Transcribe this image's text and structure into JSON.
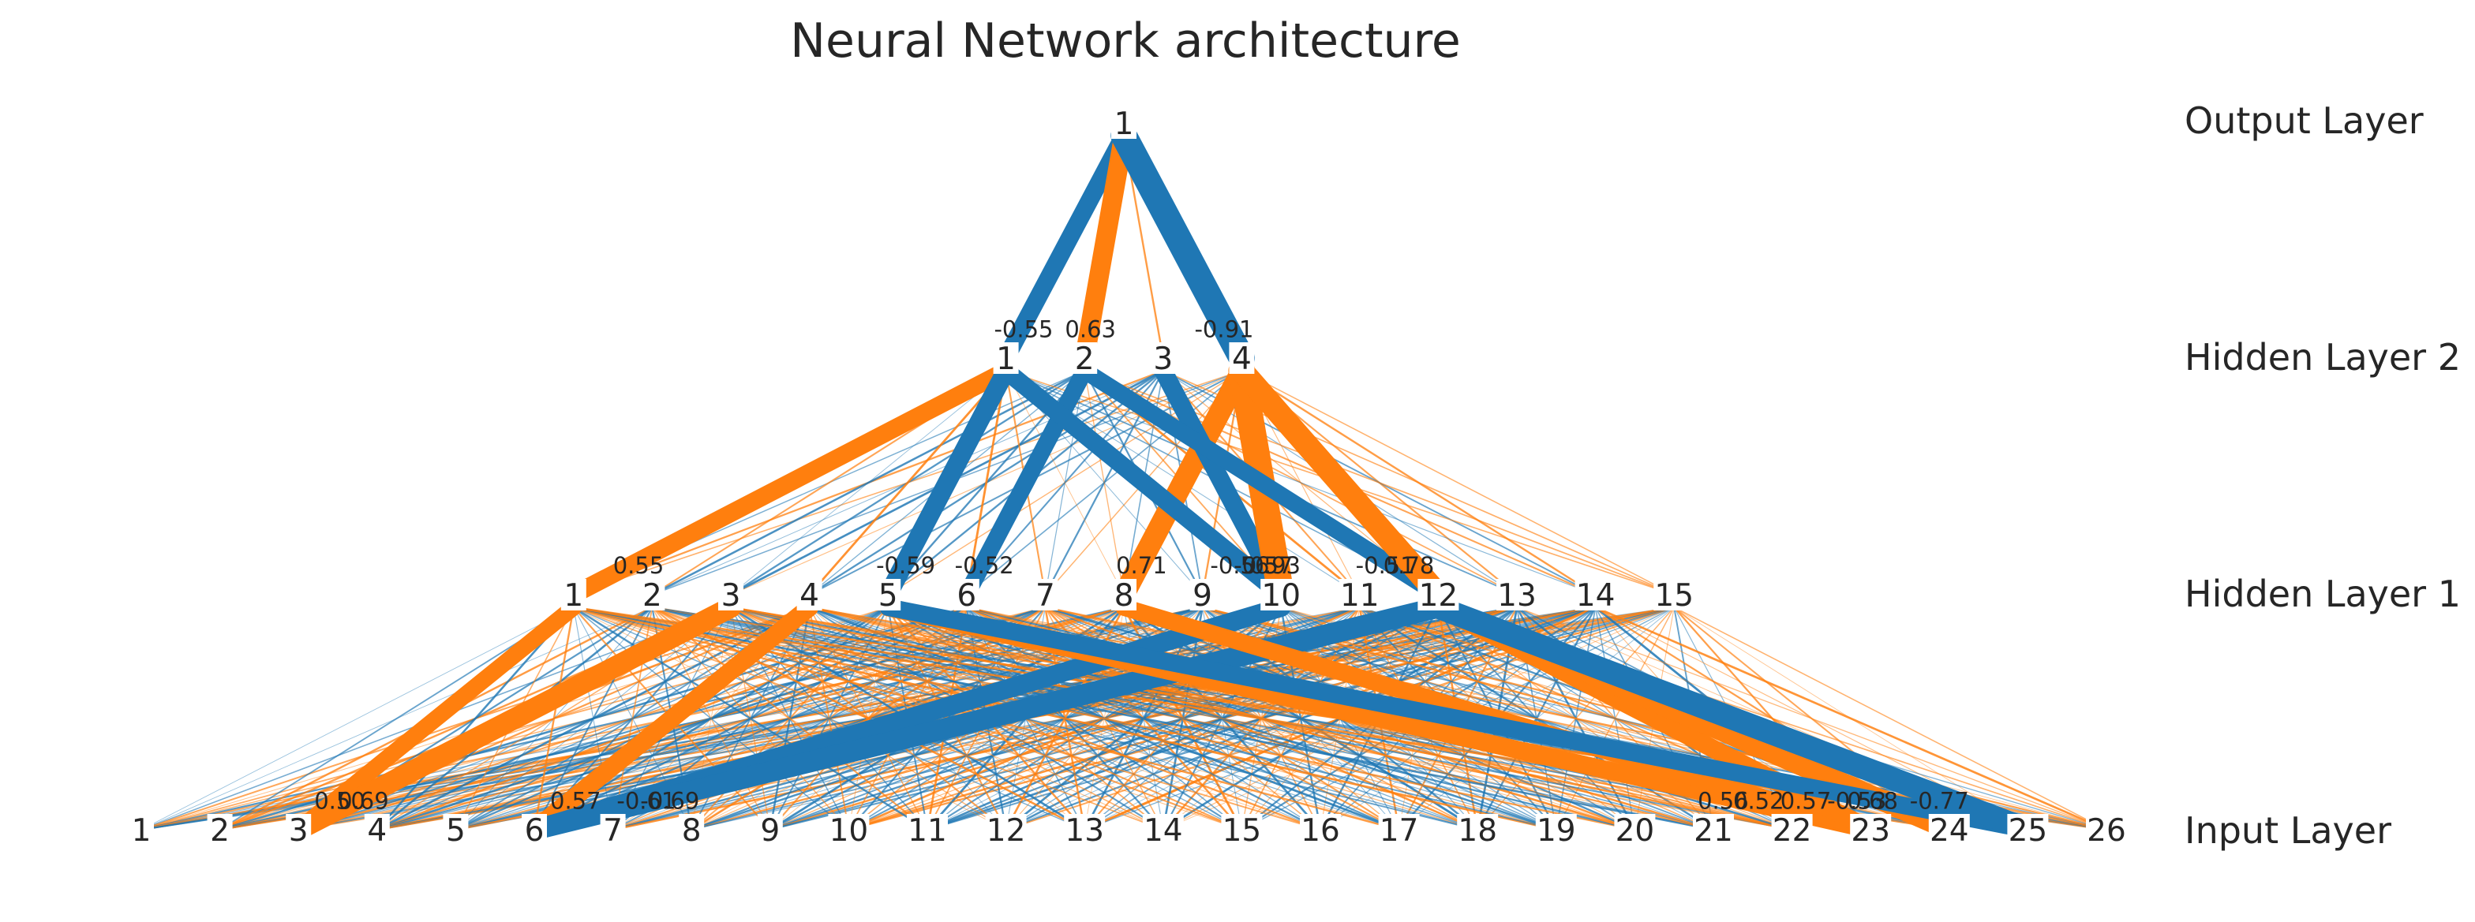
{
  "title": "Neural Network architecture",
  "colors": {
    "positive": "#ff7f0e",
    "negative": "#1f77b4",
    "node_label_bg": "#ffffff",
    "text": "#262626"
  },
  "layers": [
    {
      "name": "Input Layer",
      "size": 26
    },
    {
      "name": "Hidden Layer 1",
      "size": 15
    },
    {
      "name": "Hidden Layer 2",
      "size": 4
    },
    {
      "name": "Output Layer",
      "size": 1
    }
  ],
  "node_labels": {
    "input": [
      "1",
      "2",
      "3",
      "4",
      "5",
      "6",
      "7",
      "8",
      "9",
      "10",
      "11",
      "12",
      "13",
      "14",
      "15",
      "16",
      "17",
      "18",
      "19",
      "20",
      "21",
      "22",
      "23",
      "24",
      "25",
      "26"
    ],
    "hidden1": [
      "1",
      "2",
      "3",
      "4",
      "5",
      "6",
      "7",
      "8",
      "9",
      "10",
      "11",
      "12",
      "13",
      "14",
      "15"
    ],
    "hidden2": [
      "1",
      "2",
      "3",
      "4"
    ],
    "output": [
      "1"
    ]
  },
  "labeled_weights": [
    {
      "from_layer": 2,
      "from": 1,
      "to": 1,
      "weight": -0.55,
      "label": "-0.55"
    },
    {
      "from_layer": 2,
      "from": 2,
      "to": 1,
      "weight": 0.63,
      "label": "0.63"
    },
    {
      "from_layer": 2,
      "from": 4,
      "to": 1,
      "weight": -0.91,
      "label": "-0.91"
    },
    {
      "from_layer": 1,
      "from": 1,
      "to": 1,
      "weight": 0.55,
      "label": "0.55"
    },
    {
      "from_layer": 1,
      "from": 5,
      "to": 1,
      "weight": -0.59,
      "label": "-0.59"
    },
    {
      "from_layer": 1,
      "from": 6,
      "to": 2,
      "weight": -0.52,
      "label": "-0.52"
    },
    {
      "from_layer": 1,
      "from": 10,
      "to": 1,
      "weight": -0.56,
      "label": "-0.56"
    },
    {
      "from_layer": 1,
      "from": 12,
      "to": 2,
      "weight": -0.51,
      "label": "-0.51"
    },
    {
      "from_layer": 1,
      "from": 10,
      "to": 3,
      "weight": -0.57,
      "label": "-0.57"
    },
    {
      "from_layer": 1,
      "from": 8,
      "to": 4,
      "weight": 0.71,
      "label": "0.71"
    },
    {
      "from_layer": 1,
      "from": 10,
      "to": 4,
      "weight": 0.93,
      "label": "0.93"
    },
    {
      "from_layer": 1,
      "from": 12,
      "to": 4,
      "weight": 0.78,
      "label": "0.78"
    },
    {
      "from_layer": 0,
      "from": 3,
      "to": 1,
      "weight": 0.5,
      "label": "0.50"
    },
    {
      "from_layer": 0,
      "from": 6,
      "to": 4,
      "weight": 0.57,
      "label": "0.57"
    },
    {
      "from_layer": 0,
      "from": 3,
      "to": 3,
      "weight": 0.69,
      "label": "0.69"
    },
    {
      "from_layer": 0,
      "from": 6,
      "to": 12,
      "weight": -0.69,
      "label": "-0.69"
    },
    {
      "from_layer": 0,
      "from": 25,
      "to": 5,
      "weight": -0.53,
      "label": "-0.53"
    },
    {
      "from_layer": 0,
      "from": 6,
      "to": 10,
      "weight": -0.61,
      "label": "-0.61"
    },
    {
      "from_layer": 0,
      "from": 23,
      "to": 8,
      "weight": 0.52,
      "label": "0.52"
    },
    {
      "from_layer": 0,
      "from": 23,
      "to": 5,
      "weight": 0.56,
      "label": "0.56"
    },
    {
      "from_layer": 0,
      "from": 24,
      "to": 12,
      "weight": 0.68,
      "label": "0.68"
    },
    {
      "from_layer": 0,
      "from": 23,
      "to": 12,
      "weight": 0.57,
      "label": "0.57"
    },
    {
      "from_layer": 0,
      "from": 25,
      "to": 12,
      "weight": -0.77,
      "label": "-0.77"
    }
  ]
}
